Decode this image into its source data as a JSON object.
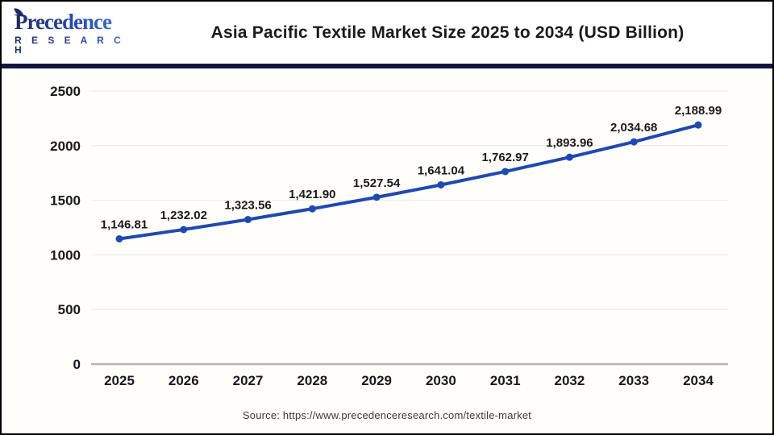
{
  "header": {
    "logo_line1": "Precedence",
    "logo_line2": "R E S E A R C H",
    "title": "Asia Pacific Textile Market Size 2025 to 2034 (USD Billion)"
  },
  "footer": {
    "source": "Source: https://www.precedenceresearch.com/textile-market"
  },
  "colors": {
    "line": "#1e49b0",
    "point": "#1e49b0",
    "grid": "#ececec",
    "axis": "#b3b3b3",
    "tick_label": "#1a1a1a",
    "data_label": "#1a1a1a",
    "divider": "#10173f"
  },
  "chart_data": {
    "type": "line",
    "title": "Asia Pacific Textile Market Size 2025 to 2034 (USD Billion)",
    "categories": [
      "2025",
      "2026",
      "2027",
      "2028",
      "2029",
      "2030",
      "2031",
      "2032",
      "2033",
      "2034"
    ],
    "values": [
      1146.81,
      1232.02,
      1323.56,
      1421.9,
      1527.54,
      1641.04,
      1762.97,
      1893.96,
      2034.68,
      2188.99
    ],
    "value_labels": [
      "1,146.81",
      "1,232.02",
      "1,323.56",
      "1,421.90",
      "1,527.54",
      "1,641.04",
      "1,762.97",
      "1,893.96",
      "2,034.68",
      "2,188.99"
    ],
    "xlabel": "",
    "ylabel": "",
    "ylim": [
      0,
      2500
    ],
    "yticks": [
      0,
      500,
      1000,
      1500,
      2000,
      2500
    ],
    "grid": true,
    "legend_position": "none",
    "units": "USD Billion"
  }
}
